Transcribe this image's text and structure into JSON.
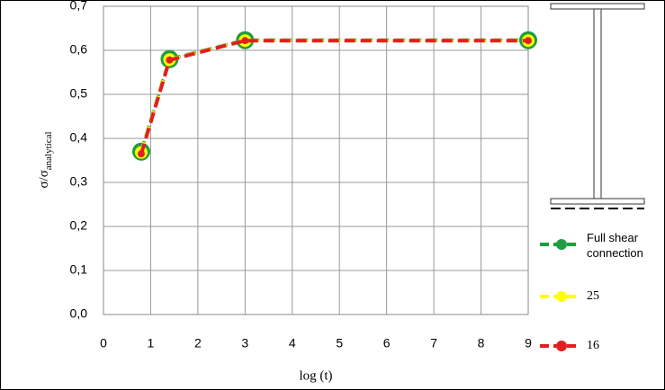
{
  "chart_data": {
    "type": "line",
    "y_label": "σ/σ",
    "y_label_sub": "analytical",
    "x_label": "log (t)",
    "xlim": [
      0,
      9
    ],
    "xticks": [
      0,
      1,
      2,
      3,
      4,
      5,
      6,
      7,
      8,
      9
    ],
    "ylim": [
      0,
      0.7
    ],
    "yticks": [
      {
        "value": 0,
        "label": "0,0"
      },
      {
        "value": 0.1,
        "label": "0,1"
      },
      {
        "value": 0.2,
        "label": "0,2"
      },
      {
        "value": 0.3,
        "label": "0,3"
      },
      {
        "value": 0.4,
        "label": "0,4"
      },
      {
        "value": 0.5,
        "label": "0,5"
      },
      {
        "value": 0.6,
        "label": "0,6"
      },
      {
        "value": 0.7,
        "label": "0,7"
      }
    ],
    "grid": true,
    "series": [
      {
        "name": "Full shear connection",
        "color": "#1f9e3f",
        "x": [
          0.8,
          1.4,
          3,
          9
        ],
        "values": [
          0.37,
          0.58,
          0.623,
          0.623
        ]
      },
      {
        "name": "25",
        "color": "#ffff00",
        "x": [
          0.8,
          1.4,
          3,
          9
        ],
        "values": [
          0.368,
          0.579,
          0.622,
          0.622
        ]
      },
      {
        "name": "16",
        "color": "#e02020",
        "x": [
          0.8,
          1.4,
          3,
          9
        ],
        "values": [
          0.365,
          0.578,
          0.622,
          0.622
        ]
      }
    ]
  }
}
